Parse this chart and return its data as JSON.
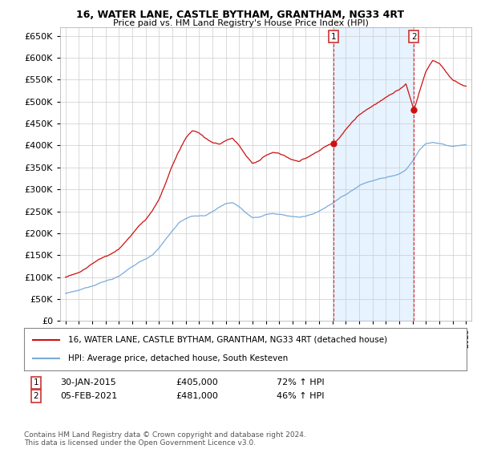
{
  "title": "16, WATER LANE, CASTLE BYTHAM, GRANTHAM, NG33 4RT",
  "subtitle": "Price paid vs. HM Land Registry's House Price Index (HPI)",
  "ylim": [
    0,
    670000
  ],
  "yticks": [
    0,
    50000,
    100000,
    150000,
    200000,
    250000,
    300000,
    350000,
    400000,
    450000,
    500000,
    550000,
    600000,
    650000
  ],
  "sale1_label": "30-JAN-2015",
  "sale1_price": 405000,
  "sale1_hpi": "72% ↑ HPI",
  "sale1_t": 2015.08,
  "sale2_label": "05-FEB-2021",
  "sale2_price": 481000,
  "sale2_hpi": "46% ↑ HPI",
  "sale2_t": 2021.1,
  "legend_line1": "16, WATER LANE, CASTLE BYTHAM, GRANTHAM, NG33 4RT (detached house)",
  "legend_line2": "HPI: Average price, detached house, South Kesteven",
  "footer": "Contains HM Land Registry data © Crown copyright and database right 2024.\nThis data is licensed under the Open Government Licence v3.0.",
  "hpi_color": "#7aabda",
  "price_color": "#cc1111",
  "vline_color": "#cc3333",
  "vshade_color": "#ddeeff",
  "background_color": "#ffffff",
  "grid_color": "#cccccc",
  "hpi_points": [
    [
      1995.0,
      62000
    ],
    [
      1995.5,
      64000
    ],
    [
      1996.0,
      67000
    ],
    [
      1996.5,
      72000
    ],
    [
      1997.0,
      78000
    ],
    [
      1997.5,
      85000
    ],
    [
      1998.0,
      90000
    ],
    [
      1998.5,
      95000
    ],
    [
      1999.0,
      102000
    ],
    [
      1999.5,
      112000
    ],
    [
      2000.0,
      122000
    ],
    [
      2000.5,
      132000
    ],
    [
      2001.0,
      140000
    ],
    [
      2001.5,
      150000
    ],
    [
      2002.0,
      165000
    ],
    [
      2002.5,
      185000
    ],
    [
      2003.0,
      205000
    ],
    [
      2003.5,
      222000
    ],
    [
      2004.0,
      232000
    ],
    [
      2004.5,
      238000
    ],
    [
      2005.0,
      238000
    ],
    [
      2005.5,
      240000
    ],
    [
      2006.0,
      248000
    ],
    [
      2006.5,
      258000
    ],
    [
      2007.0,
      268000
    ],
    [
      2007.5,
      270000
    ],
    [
      2008.0,
      262000
    ],
    [
      2008.5,
      248000
    ],
    [
      2009.0,
      238000
    ],
    [
      2009.5,
      240000
    ],
    [
      2010.0,
      245000
    ],
    [
      2010.5,
      248000
    ],
    [
      2011.0,
      245000
    ],
    [
      2011.5,
      242000
    ],
    [
      2012.0,
      240000
    ],
    [
      2012.5,
      238000
    ],
    [
      2013.0,
      240000
    ],
    [
      2013.5,
      245000
    ],
    [
      2014.0,
      252000
    ],
    [
      2014.5,
      260000
    ],
    [
      2015.0,
      268000
    ],
    [
      2015.5,
      278000
    ],
    [
      2016.0,
      288000
    ],
    [
      2016.5,
      298000
    ],
    [
      2017.0,
      308000
    ],
    [
      2017.5,
      315000
    ],
    [
      2018.0,
      320000
    ],
    [
      2018.5,
      325000
    ],
    [
      2019.0,
      328000
    ],
    [
      2019.5,
      332000
    ],
    [
      2020.0,
      335000
    ],
    [
      2020.5,
      345000
    ],
    [
      2021.0,
      365000
    ],
    [
      2021.5,
      390000
    ],
    [
      2022.0,
      405000
    ],
    [
      2022.5,
      408000
    ],
    [
      2023.0,
      405000
    ],
    [
      2023.5,
      400000
    ],
    [
      2024.0,
      398000
    ],
    [
      2024.5,
      400000
    ],
    [
      2025.0,
      402000
    ]
  ],
  "price_points": [
    [
      1995.0,
      100000
    ],
    [
      1995.5,
      106000
    ],
    [
      1996.0,
      112000
    ],
    [
      1996.5,
      120000
    ],
    [
      1997.0,
      130000
    ],
    [
      1997.5,
      142000
    ],
    [
      1998.0,
      148000
    ],
    [
      1998.5,
      155000
    ],
    [
      1999.0,
      165000
    ],
    [
      1999.5,
      182000
    ],
    [
      2000.0,
      200000
    ],
    [
      2000.5,
      218000
    ],
    [
      2001.0,
      232000
    ],
    [
      2001.5,
      252000
    ],
    [
      2002.0,
      278000
    ],
    [
      2002.5,
      315000
    ],
    [
      2003.0,
      355000
    ],
    [
      2003.5,
      388000
    ],
    [
      2004.0,
      415000
    ],
    [
      2004.5,
      432000
    ],
    [
      2005.0,
      428000
    ],
    [
      2005.5,
      415000
    ],
    [
      2006.0,
      405000
    ],
    [
      2006.5,
      400000
    ],
    [
      2007.0,
      408000
    ],
    [
      2007.5,
      412000
    ],
    [
      2008.0,
      398000
    ],
    [
      2008.5,
      375000
    ],
    [
      2009.0,
      358000
    ],
    [
      2009.5,
      362000
    ],
    [
      2010.0,
      375000
    ],
    [
      2010.5,
      382000
    ],
    [
      2011.0,
      378000
    ],
    [
      2011.5,
      370000
    ],
    [
      2012.0,
      365000
    ],
    [
      2012.5,
      360000
    ],
    [
      2013.0,
      368000
    ],
    [
      2013.5,
      378000
    ],
    [
      2014.0,
      388000
    ],
    [
      2014.5,
      398000
    ],
    [
      2015.08,
      405000
    ],
    [
      2015.5,
      415000
    ],
    [
      2016.0,
      435000
    ],
    [
      2016.5,
      452000
    ],
    [
      2017.0,
      468000
    ],
    [
      2017.5,
      482000
    ],
    [
      2018.0,
      492000
    ],
    [
      2018.5,
      502000
    ],
    [
      2019.0,
      512000
    ],
    [
      2019.5,
      522000
    ],
    [
      2020.0,
      530000
    ],
    [
      2020.5,
      542000
    ],
    [
      2021.1,
      481000
    ],
    [
      2021.5,
      520000
    ],
    [
      2022.0,
      568000
    ],
    [
      2022.5,
      595000
    ],
    [
      2023.0,
      590000
    ],
    [
      2023.5,
      572000
    ],
    [
      2024.0,
      555000
    ],
    [
      2024.5,
      548000
    ],
    [
      2025.0,
      542000
    ]
  ]
}
